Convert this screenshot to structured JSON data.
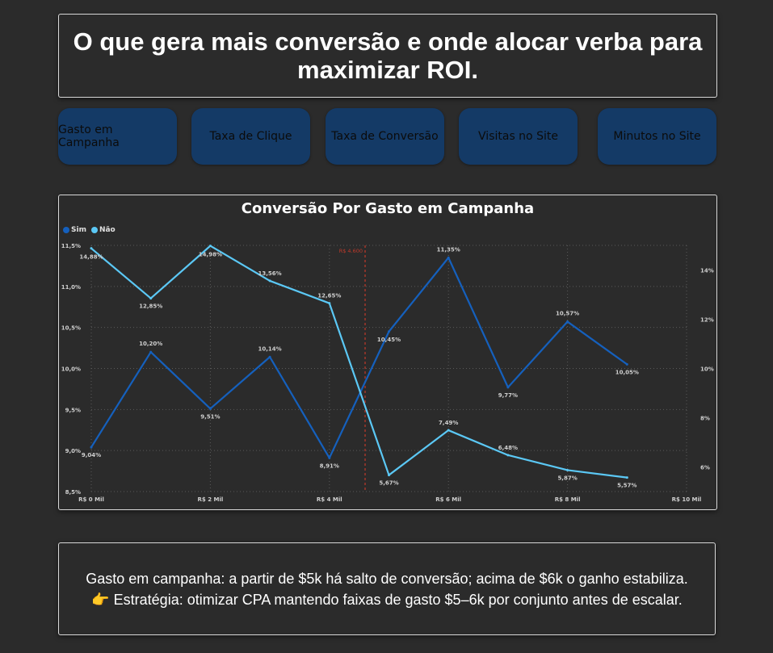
{
  "header": {
    "title": "O que gera mais conversão e onde alocar verba para maximizar ROI."
  },
  "nav": {
    "buttons": [
      {
        "label": "Gasto em Campanha"
      },
      {
        "label": "Taxa de Clique"
      },
      {
        "label": "Taxa de Conversão"
      },
      {
        "label": "Visitas no Site"
      },
      {
        "label": "Minutos no Site"
      }
    ],
    "color": "#143a66"
  },
  "chart_data": {
    "type": "line",
    "title": "Conversão Por Gasto em Campanha",
    "xlabel": "",
    "ylabel": "",
    "x_ticks": [
      {
        "value": 0,
        "label": "R$ 0 Mil"
      },
      {
        "value": 2000,
        "label": "R$ 2 Mil"
      },
      {
        "value": 4000,
        "label": "R$ 4 Mil"
      },
      {
        "value": 6000,
        "label": "R$ 6 Mil"
      },
      {
        "value": 8000,
        "label": "R$ 8 Mil"
      },
      {
        "value": 10000,
        "label": "R$ 10 Mil"
      }
    ],
    "xlim": [
      0,
      10000
    ],
    "ylim_left": [
      8.5,
      11.5
    ],
    "ylim_right": [
      5,
      15
    ],
    "y_left_ticks": [
      "8,5%",
      "9,0%",
      "9,5%",
      "10,0%",
      "10,5%",
      "11,0%",
      "11,5%"
    ],
    "y_right_ticks": [
      "6%",
      "8%",
      "10%",
      "12%",
      "14%"
    ],
    "grid": true,
    "legend_position": "top-left",
    "reference_line": {
      "x": 4600,
      "label": "R$ 4.600",
      "color": "#c0392b"
    },
    "series": [
      {
        "name": "Sim",
        "axis": "left",
        "color": "#1560bd",
        "x": [
          0,
          1000,
          2000,
          3000,
          4000,
          5000,
          6000,
          7000,
          8000,
          9000
        ],
        "values": [
          9.04,
          10.2,
          9.51,
          10.14,
          8.91,
          10.45,
          11.35,
          9.77,
          10.57,
          10.05
        ],
        "labels": [
          "9,04%",
          "10,20%",
          "9,51%",
          "10,14%",
          "8,91%",
          "10,45%",
          "11,35%",
          "9,77%",
          "10,57%",
          "10,05%"
        ]
      },
      {
        "name": "Não",
        "axis": "right",
        "color": "#5bc8f5",
        "x": [
          0,
          1000,
          2000,
          3000,
          4000,
          5000,
          6000,
          7000,
          8000,
          9000
        ],
        "values": [
          14.88,
          12.85,
          14.98,
          13.56,
          12.65,
          5.67,
          7.49,
          6.48,
          5.87,
          5.57
        ],
        "labels": [
          "14,88%",
          "12,85%",
          "14,98%",
          "13,56%",
          "12,65%",
          "5,67%",
          "7,49%",
          "6,48%",
          "5,87%",
          "5,57%"
        ]
      }
    ]
  },
  "note": {
    "line1": "Gasto em campanha: a partir de $5k há salto de conversão; acima de $6k o ganho estabiliza.",
    "line2": "👉 Estratégia: otimizar CPA mantendo faixas de gasto $5–6k por conjunto antes de escalar."
  }
}
